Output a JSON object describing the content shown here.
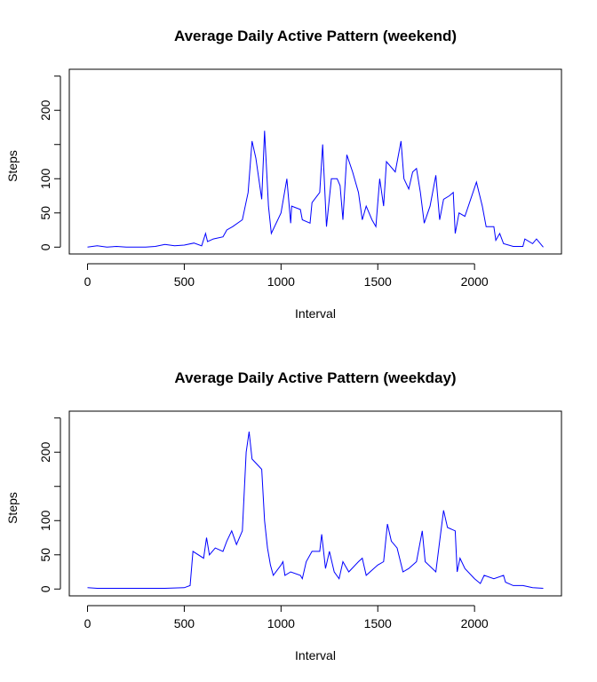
{
  "chart_data": [
    {
      "type": "line",
      "title": "Average Daily Active Pattern (weekend)",
      "xlabel": "Interval",
      "ylabel": "Steps",
      "color": "blue",
      "x": [
        0,
        50,
        100,
        150,
        200,
        300,
        350,
        400,
        450,
        500,
        550,
        590,
        610,
        620,
        650,
        700,
        720,
        750,
        800,
        830,
        850,
        870,
        900,
        915,
        935,
        950,
        1000,
        1030,
        1050,
        1055,
        1100,
        1110,
        1150,
        1160,
        1200,
        1215,
        1235,
        1260,
        1290,
        1305,
        1320,
        1340,
        1370,
        1400,
        1420,
        1440,
        1470,
        1490,
        1510,
        1530,
        1545,
        1590,
        1620,
        1635,
        1660,
        1680,
        1700,
        1720,
        1740,
        1770,
        1800,
        1820,
        1840,
        1870,
        1890,
        1900,
        1920,
        1950,
        2010,
        2040,
        2060,
        2100,
        2110,
        2130,
        2150,
        2200,
        2250,
        2260,
        2300,
        2320,
        2355
      ],
      "values": [
        0,
        2,
        0,
        1,
        0,
        0,
        1,
        4,
        2,
        3,
        6,
        2,
        20,
        8,
        12,
        15,
        25,
        30,
        40,
        80,
        155,
        130,
        70,
        170,
        60,
        20,
        50,
        100,
        35,
        60,
        55,
        40,
        35,
        65,
        80,
        150,
        30,
        100,
        100,
        90,
        40,
        135,
        110,
        80,
        40,
        60,
        40,
        30,
        100,
        60,
        125,
        110,
        155,
        100,
        85,
        110,
        115,
        80,
        35,
        60,
        105,
        40,
        70,
        75,
        80,
        20,
        50,
        45,
        95,
        60,
        30,
        30,
        10,
        20,
        5,
        1,
        1,
        12,
        5,
        12,
        0
      ],
      "xlim": [
        -94.2,
        2449.2
      ],
      "ylim": [
        -10,
        260
      ],
      "xticks": [
        0,
        500,
        1000,
        1500,
        2000
      ],
      "yticks": [
        0,
        50,
        100,
        200
      ],
      "yticks_unlabeled": [
        150,
        250
      ]
    },
    {
      "type": "line",
      "title": "Average Daily Active Pattern (weekday)",
      "xlabel": "Interval",
      "ylabel": "Steps",
      "color": "blue",
      "x": [
        0,
        50,
        200,
        400,
        500,
        530,
        545,
        600,
        615,
        630,
        660,
        700,
        720,
        745,
        770,
        800,
        820,
        835,
        850,
        900,
        915,
        930,
        945,
        960,
        1000,
        1010,
        1020,
        1050,
        1100,
        1110,
        1130,
        1160,
        1200,
        1210,
        1230,
        1250,
        1275,
        1300,
        1320,
        1350,
        1400,
        1420,
        1440,
        1500,
        1530,
        1550,
        1570,
        1600,
        1630,
        1660,
        1700,
        1730,
        1745,
        1800,
        1820,
        1840,
        1860,
        1900,
        1910,
        1925,
        1950,
        2000,
        2030,
        2050,
        2100,
        2150,
        2160,
        2200,
        2250,
        2300,
        2355
      ],
      "values": [
        2,
        1,
        1,
        1,
        2,
        5,
        55,
        45,
        75,
        50,
        60,
        55,
        70,
        85,
        65,
        85,
        200,
        230,
        190,
        175,
        100,
        60,
        35,
        20,
        35,
        40,
        20,
        25,
        20,
        15,
        40,
        55,
        55,
        80,
        30,
        55,
        25,
        15,
        40,
        25,
        40,
        45,
        20,
        35,
        40,
        95,
        70,
        60,
        25,
        30,
        40,
        85,
        40,
        25,
        70,
        115,
        90,
        85,
        25,
        45,
        30,
        15,
        8,
        20,
        15,
        20,
        10,
        5,
        5,
        2,
        1
      ],
      "xlim": [
        -94.2,
        2449.2
      ],
      "ylim": [
        -10,
        260
      ],
      "xticks": [
        0,
        500,
        1000,
        1500,
        2000
      ],
      "yticks": [
        0,
        50,
        100,
        200
      ],
      "yticks_unlabeled": [
        150,
        250
      ]
    }
  ]
}
